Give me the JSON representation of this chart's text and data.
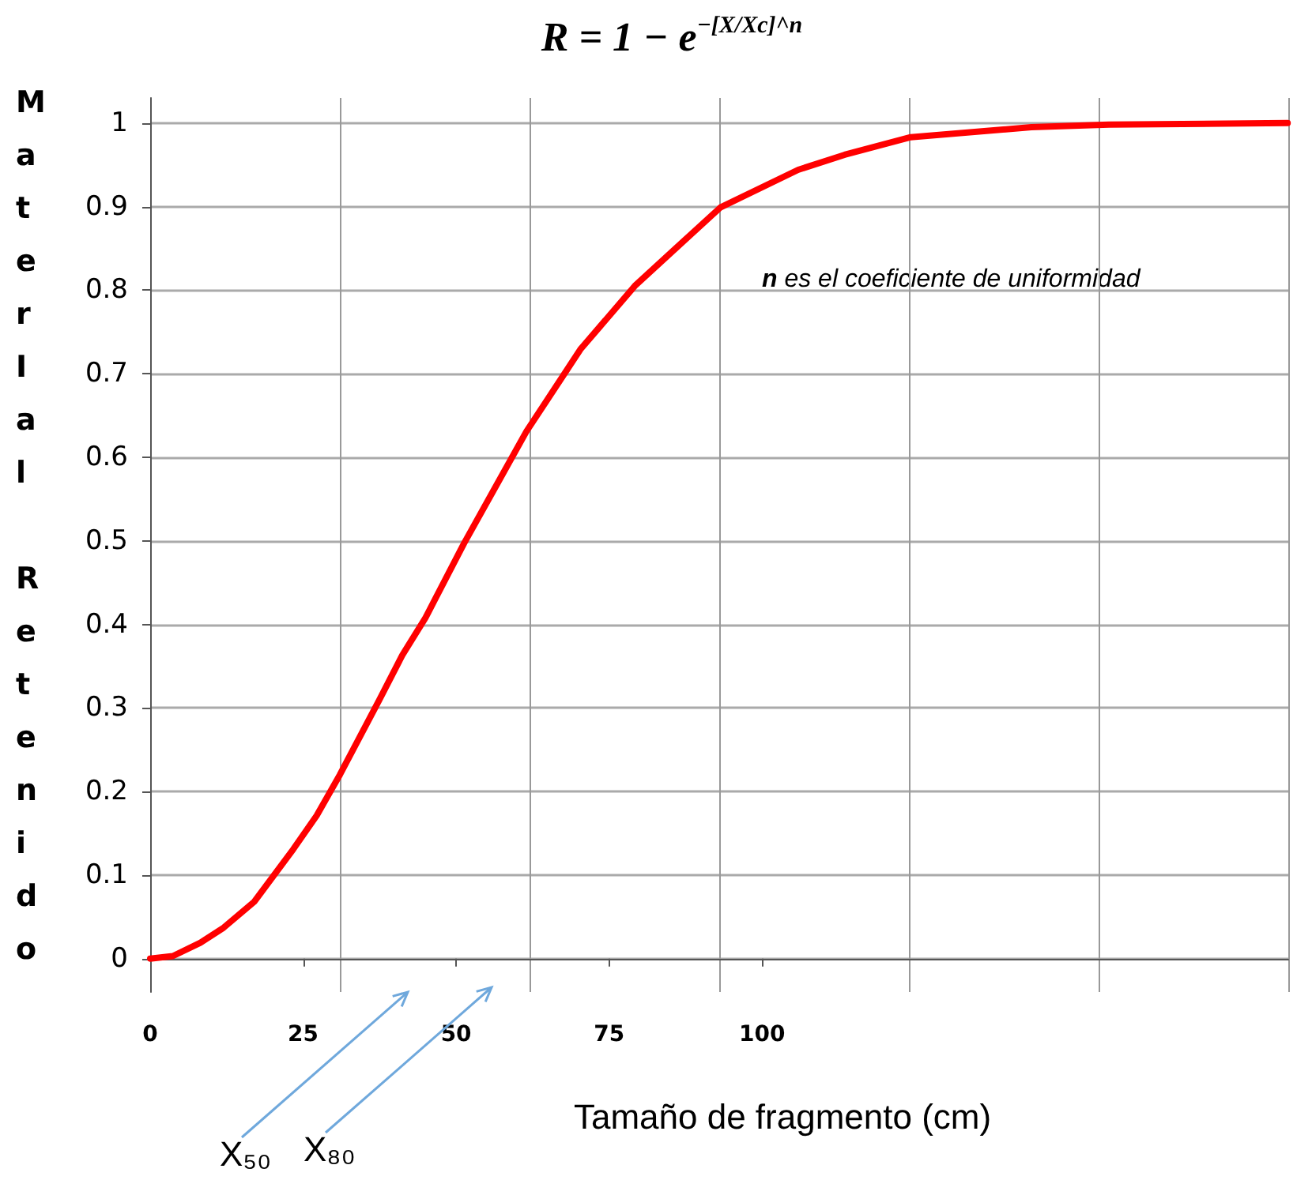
{
  "chart_data": {
    "type": "line",
    "title": "R = 1 − e$^{−[X/Xc]^n}$",
    "xlabel": "Tamaño de fragmento (cm)",
    "ylabel": "MaterIal Retenido",
    "annotations": [
      "n es el coeficiente de uniformidad",
      "X₅₀",
      "X₈₀"
    ],
    "x": [
      0,
      3.7,
      8.2,
      12.0,
      17.0,
      23.4,
      27.2,
      31.0,
      37.4,
      41.2,
      45.0,
      51.3,
      56.4,
      61.5,
      67.8,
      70.3,
      79.2,
      85.6,
      93.2,
      105.9,
      113.5,
      124.3,
      144.0,
      156.7,
      185.9
    ],
    "series": [
      {
        "color": "#ff0000",
        "values": [
          0,
          0.003,
          0.019,
          0.037,
          0.068,
          0.131,
          0.171,
          0.22,
          0.309,
          0.363,
          0.408,
          0.497,
          0.564,
          0.631,
          0.701,
          0.729,
          0.805,
          0.848,
          0.899,
          0.944,
          0.962,
          0.983,
          0.995,
          0.998,
          1.0
        ]
      }
    ],
    "xlim": [
      0,
      186
    ],
    "xticks": [
      0,
      25,
      50,
      75,
      100,
      {
        "value": 31,
        "label": null
      },
      {
        "value": 62,
        "label": null
      },
      {
        "value": 93,
        "label": null
      },
      {
        "value": 124,
        "label": null
      },
      {
        "value": 155,
        "label": null
      },
      {
        "value": 186,
        "label": null
      }
    ],
    "ylim": [
      -0.04,
      1.03
    ],
    "yticks": [
      0,
      0.1,
      0.2,
      0.3,
      0.4,
      0.5,
      0.6,
      0.7,
      0.8,
      0.9,
      1
    ],
    "grid": true,
    "marker": "none",
    "line_style": "solid"
  }
}
